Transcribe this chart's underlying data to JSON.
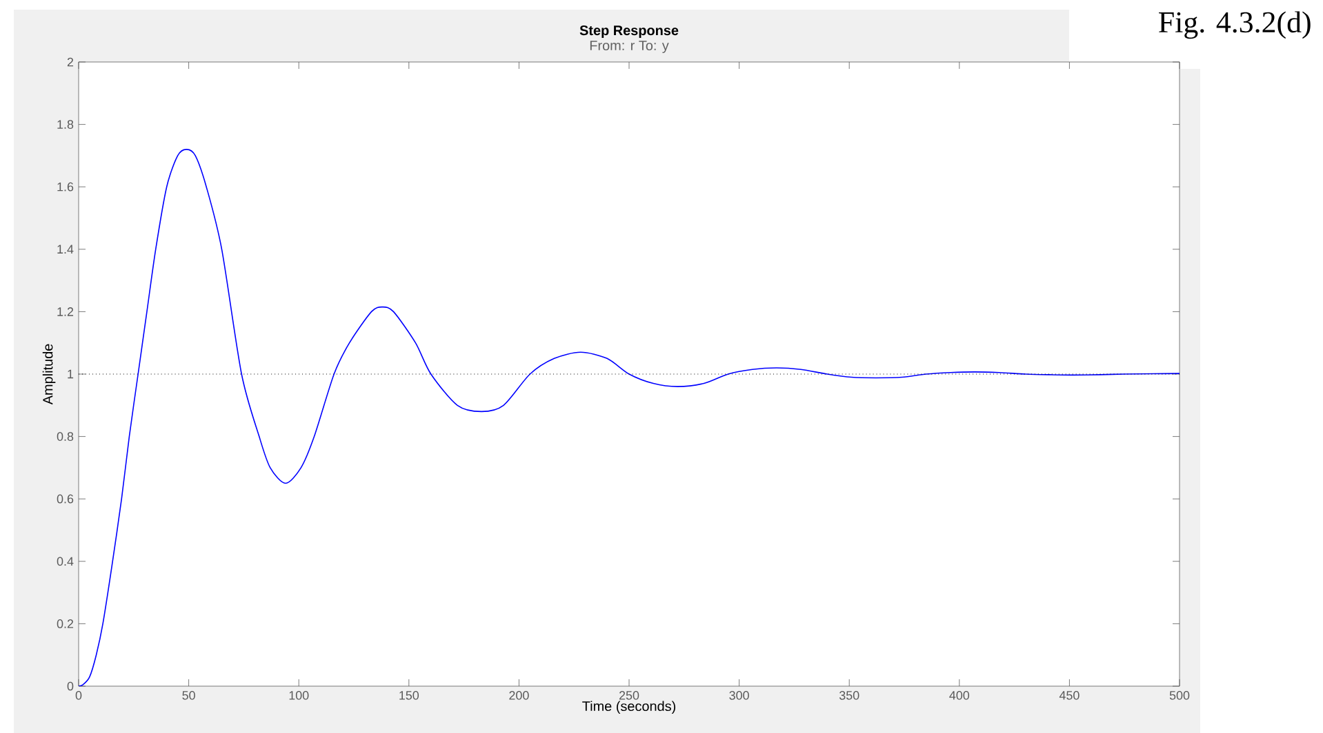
{
  "chart_data": {
    "type": "line",
    "title": "Step Response",
    "subtitle": "From: r  To: y",
    "xlabel": "Time (seconds)",
    "ylabel": "Amplitude",
    "annotations": [
      "Fig. 4.3.2(d)"
    ],
    "x": [
      0,
      2,
      5,
      8,
      11,
      15,
      19.5,
      23,
      27,
      31,
      35,
      40,
      45,
      49,
      53,
      58,
      65,
      74,
      82,
      87,
      94,
      101,
      107,
      116,
      123,
      133,
      138,
      143,
      153,
      160,
      172,
      183,
      193,
      205,
      216,
      228,
      240,
      250,
      261,
      272,
      284,
      295,
      306,
      317,
      328,
      340,
      351,
      362,
      374,
      385,
      396,
      407,
      418,
      430,
      441,
      452,
      464,
      475,
      488,
      500
    ],
    "series": [
      {
        "color": "#0000ff",
        "values": [
          0,
          0.005,
          0.03,
          0.1,
          0.2,
          0.38,
          0.6,
          0.8,
          1.0,
          1.2,
          1.4,
          1.6,
          1.7,
          1.72,
          1.7,
          1.6,
          1.4,
          1.0,
          0.8,
          0.7,
          0.65,
          0.7,
          0.8,
          1.0,
          1.1,
          1.2,
          1.215,
          1.2,
          1.1,
          1.0,
          0.9,
          0.88,
          0.9,
          1.0,
          1.05,
          1.07,
          1.05,
          1.0,
          0.97,
          0.96,
          0.97,
          1.0,
          1.015,
          1.02,
          1.015,
          1.0,
          0.99,
          0.988,
          0.99,
          1.0,
          1.005,
          1.007,
          1.005,
          1.0,
          0.998,
          0.997,
          0.998,
          1.0,
          1.001,
          1.002
        ]
      }
    ],
    "xlim": [
      0,
      500
    ],
    "xticks": [
      0,
      50,
      100,
      150,
      200,
      250,
      300,
      350,
      400,
      450,
      500
    ],
    "ylim": [
      0,
      2
    ],
    "yticks": [
      0,
      0.2,
      0.4,
      0.6,
      0.8,
      1,
      1.2,
      1.4,
      1.6,
      1.8,
      2
    ],
    "ref_lines": [
      {
        "axis": "y",
        "value": 1,
        "color": "#000000",
        "line_style": "dotted"
      }
    ],
    "grid": false,
    "marker": "none",
    "line_style": "solid"
  }
}
